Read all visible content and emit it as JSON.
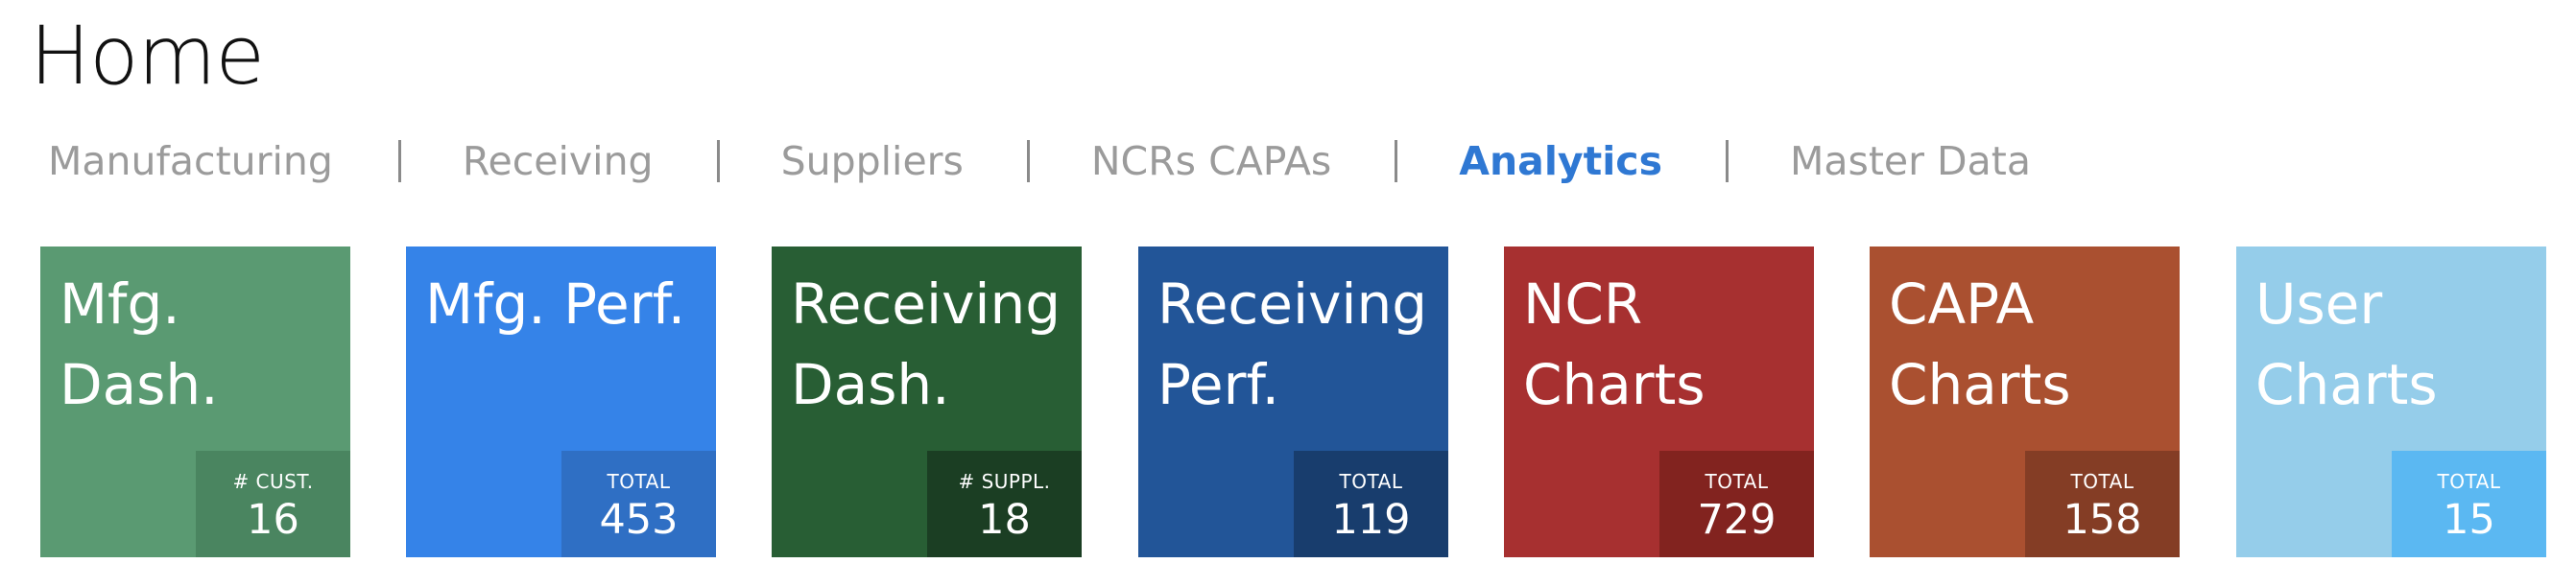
{
  "page": {
    "title": "Home"
  },
  "nav": {
    "tabs": [
      {
        "label": "Manufacturing",
        "active": false
      },
      {
        "label": "Receiving",
        "active": false
      },
      {
        "label": "Suppliers",
        "active": false
      },
      {
        "label": "NCRs CAPAs",
        "active": false
      },
      {
        "label": "Analytics",
        "active": true
      },
      {
        "label": "Master Data",
        "active": false
      }
    ],
    "separator": "|",
    "colors": {
      "inactive": "#9b9b9b",
      "active": "#2f78d3"
    }
  },
  "tiles": [
    {
      "line1": "Mfg.",
      "line2": "Dash.",
      "stat_label": "# CUST.",
      "stat_value": "16",
      "color": "#5a9a72",
      "stat_color": "#4a8560"
    },
    {
      "line1": "Mfg. Perf.",
      "line2": "",
      "stat_label": "TOTAL",
      "stat_value": "453",
      "color": "#3583e8",
      "stat_color": "#2f6fc4"
    },
    {
      "line1": "Receiving",
      "line2": "Dash.",
      "stat_label": "# SUPPL.",
      "stat_value": "18",
      "color": "#285e34",
      "stat_color": "#1b3e23"
    },
    {
      "line1": "Receiving",
      "line2": "Perf.",
      "stat_label": "TOTAL",
      "stat_value": "119",
      "color": "#225598",
      "stat_color": "#183d6d"
    },
    {
      "line1": "NCR",
      "line2": "Charts",
      "stat_label": "TOTAL",
      "stat_value": "729",
      "color": "#a73030",
      "stat_color": "#82231f"
    },
    {
      "line1": "CAPA",
      "line2": "Charts",
      "stat_label": "TOTAL",
      "stat_value": "158",
      "color": "#aa5030",
      "stat_color": "#843d25"
    },
    {
      "line1": "User",
      "line2": "Charts",
      "stat_label": "TOTAL",
      "stat_value": "15",
      "color": "#95cdea",
      "stat_color": "#5bb8f2"
    }
  ]
}
